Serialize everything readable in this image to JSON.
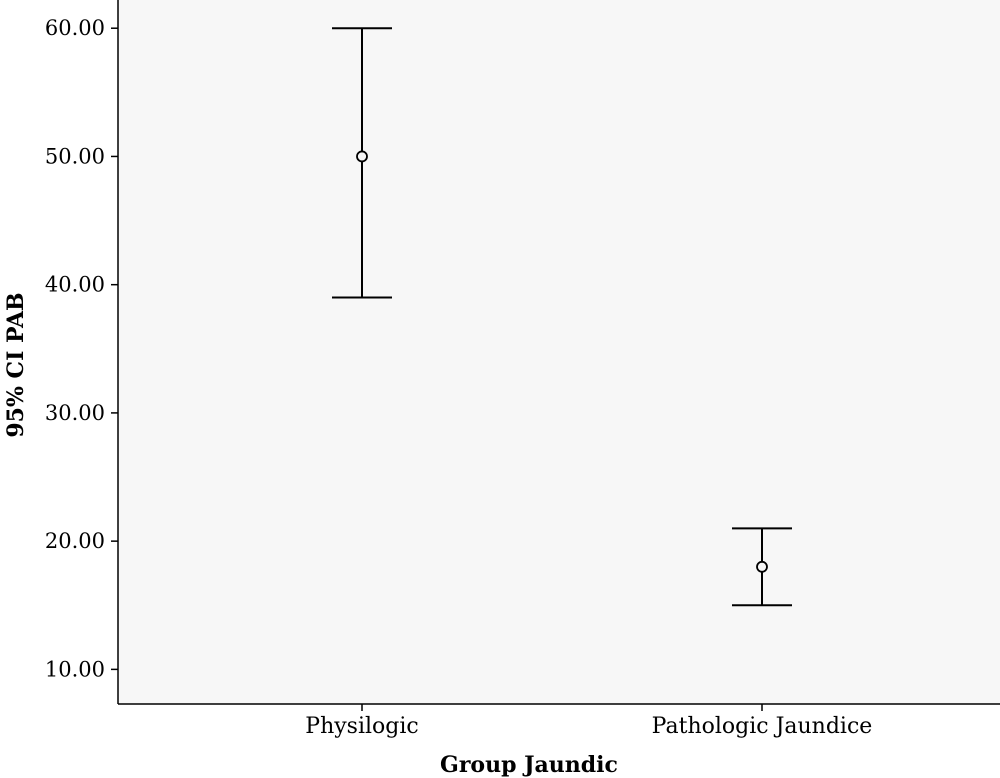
{
  "chart_data": {
    "type": "errorbar",
    "xlabel": "Group Jaundic",
    "ylabel": "95% CI PAB",
    "categories": [
      "Physilogic",
      "Pathologic Jaundice"
    ],
    "points": [
      {
        "category": "Physilogic",
        "mean": 50.0,
        "lower": 39.0,
        "upper": 60.0
      },
      {
        "category": "Pathologic Jaundice",
        "mean": 18.0,
        "lower": 15.0,
        "upper": 21.0
      }
    ],
    "yticks": [
      10,
      20,
      30,
      40,
      50,
      60
    ],
    "ytick_labels": [
      "10.00",
      "20.00",
      "30.00",
      "40.00",
      "50.00",
      "60.00"
    ],
    "ylim": [
      7.3,
      62.2
    ],
    "grid": false,
    "background_color": "#f7f7f7",
    "line_color": "#000000"
  }
}
